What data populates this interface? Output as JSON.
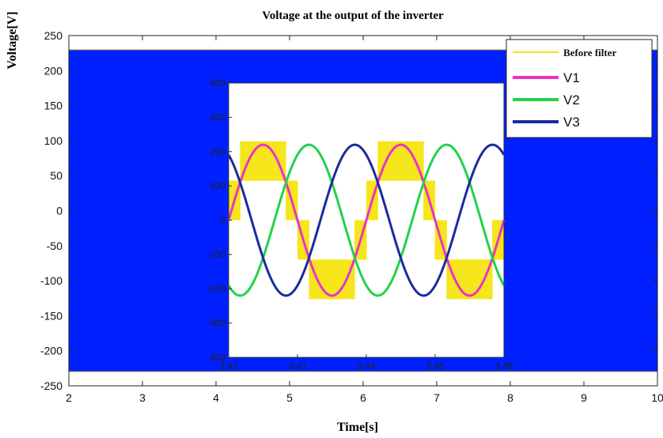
{
  "chart_data": {
    "type": "line",
    "title": "Voltage at the output of the inverter",
    "xlabel": "Time[s]",
    "ylabel": "Voltage[V]",
    "xlim": [
      2,
      10
    ],
    "ylim": [
      -250,
      250
    ],
    "x_ticks": [
      "2",
      "3",
      "4",
      "5",
      "6",
      "7",
      "8",
      "9",
      "10"
    ],
    "y_ticks": [
      "250",
      "200",
      "150",
      "100",
      "50",
      "0",
      "-50",
      "-100",
      "-150",
      "-200",
      "-250"
    ],
    "main_fill": {
      "from": -230,
      "to": 230,
      "color": "#0020ff"
    },
    "legend": {
      "placement": "top-right",
      "entries": [
        {
          "label": "Before filter",
          "color": "#f5e61a"
        },
        {
          "label": "V1",
          "color": "#e834c8"
        },
        {
          "label": "V2",
          "color": "#22d24a"
        },
        {
          "label": "V3",
          "color": "#1a2aa0"
        }
      ]
    },
    "inset": {
      "xlim": [
        3.42,
        3.46
      ],
      "ylim": [
        -400,
        400
      ],
      "x_ticks": [
        "3.42",
        "3.43",
        "3.44",
        "3.45",
        "3.46"
      ],
      "y_ticks": [
        "400",
        "300",
        "200",
        "100",
        "0",
        "-100",
        "-200",
        "-300",
        "-400"
      ],
      "series": [
        {
          "name": "V1",
          "amplitude": 220,
          "frequency_hz": 50,
          "phase_deg": 0,
          "color": "#e834c8"
        },
        {
          "name": "V2",
          "amplitude": 220,
          "frequency_hz": 50,
          "phase_deg": -120,
          "color": "#22d24a"
        },
        {
          "name": "V3",
          "amplitude": 220,
          "frequency_hz": 50,
          "phase_deg": 120,
          "color": "#1a2aa0"
        }
      ],
      "before_filter": {
        "levels": [
          -230,
          -115,
          0,
          115,
          230
        ],
        "color": "#f5e61a"
      }
    }
  }
}
